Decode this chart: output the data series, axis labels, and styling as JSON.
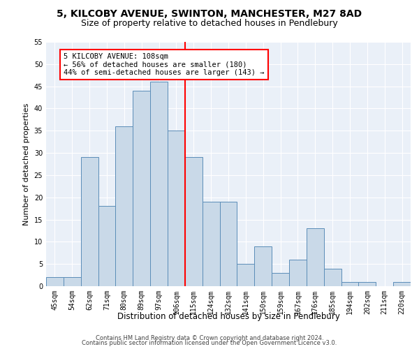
{
  "title": "5, KILCOBY AVENUE, SWINTON, MANCHESTER, M27 8AD",
  "subtitle": "Size of property relative to detached houses in Pendlebury",
  "xlabel": "Distribution of detached houses by size in Pendlebury",
  "ylabel": "Number of detached properties",
  "categories": [
    "45sqm",
    "54sqm",
    "62sqm",
    "71sqm",
    "80sqm",
    "89sqm",
    "97sqm",
    "106sqm",
    "115sqm",
    "124sqm",
    "132sqm",
    "141sqm",
    "150sqm",
    "159sqm",
    "167sqm",
    "176sqm",
    "185sqm",
    "194sqm",
    "202sqm",
    "211sqm",
    "220sqm"
  ],
  "values": [
    2,
    2,
    29,
    18,
    36,
    44,
    46,
    35,
    29,
    19,
    19,
    5,
    9,
    3,
    6,
    13,
    4,
    1,
    1,
    0,
    1
  ],
  "bar_color": "#c9d9e8",
  "bar_edge_color": "#5b8db8",
  "red_line_bin": 7,
  "annotation_line1": "5 KILCOBY AVENUE: 108sqm",
  "annotation_line2": "← 56% of detached houses are smaller (180)",
  "annotation_line3": "44% of semi-detached houses are larger (143) →",
  "ylim": [
    0,
    55
  ],
  "yticks": [
    0,
    5,
    10,
    15,
    20,
    25,
    30,
    35,
    40,
    45,
    50,
    55
  ],
  "footer_line1": "Contains HM Land Registry data © Crown copyright and database right 2024.",
  "footer_line2": "Contains public sector information licensed under the Open Government Licence v3.0.",
  "plot_bg_color": "#eaf0f8",
  "title_fontsize": 10,
  "subtitle_fontsize": 9,
  "tick_fontsize": 7,
  "ylabel_fontsize": 8,
  "xlabel_fontsize": 8.5,
  "annotation_fontsize": 7.5,
  "footer_fontsize": 6
}
